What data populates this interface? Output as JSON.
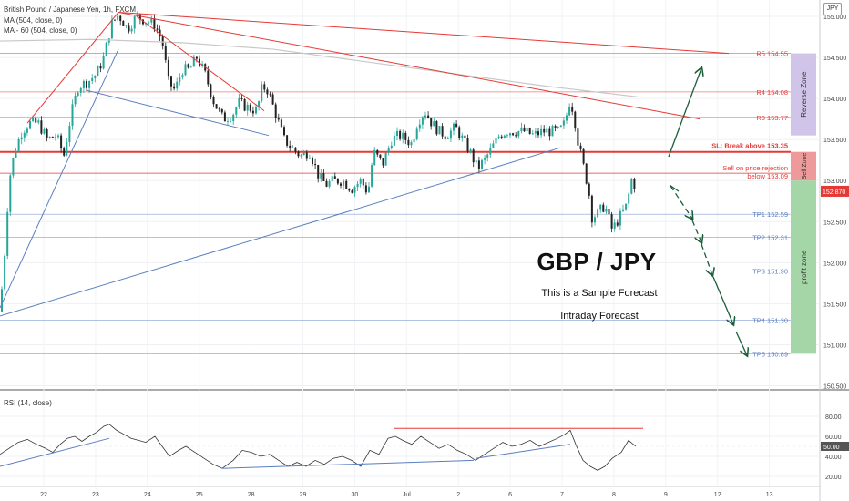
{
  "header": {
    "symbol": "British Pound / Japanese Yen, 1h, FXCM",
    "ma1": "MA (504, close, 0)",
    "ma2": "MA - 60 (504, close, 0)",
    "rsi": "RSI (14, close)"
  },
  "currency_button": "JPY",
  "annotations": {
    "title": "GBP / JPY",
    "line1": "This is a Sample Forecast",
    "line2": "Intraday Forecast"
  },
  "zones": {
    "reverse": "Reverse Zone",
    "sell": "Sell Zone",
    "profit": "profit zone"
  },
  "colors": {
    "bull": "#26a69a",
    "bear": "#222222",
    "level_red": "#e53935",
    "level_blue": "#5b7fc0",
    "forecast_arrow": "#1b5e3a",
    "reverse_zone": "#d1c4e9",
    "sell_zone": "#ef9a9a",
    "profit_zone": "#a5d6a7"
  },
  "chart_data": [
    {
      "type": "candlestick",
      "x_tick_labels": [
        "22",
        "23",
        "24",
        "25",
        "28",
        "29",
        "30",
        "Jul",
        "2",
        "6",
        "7",
        "8",
        "9",
        "12",
        "13"
      ],
      "y_tick_labels": [
        "155.000",
        "154.500",
        "154.000",
        "153.500",
        "153.000",
        "152.500",
        "152.000",
        "151.500",
        "151.000",
        "150.500"
      ],
      "ylim": [
        150.45,
        155.2
      ],
      "last_price": "152.870",
      "levels": [
        {
          "label": "R5 154.55",
          "value": 154.55,
          "kind": "resistance"
        },
        {
          "label": "R4 154.08",
          "value": 154.08,
          "kind": "resistance"
        },
        {
          "label": "R3 153.77",
          "value": 153.77,
          "kind": "resistance"
        },
        {
          "label": "SL: Break above 153.35",
          "value": 153.35,
          "kind": "stop"
        },
        {
          "label": "Sell on price rejection",
          "label2": "below 153.09",
          "value": 153.09,
          "kind": "entry"
        },
        {
          "label": "TP1 152.59",
          "value": 152.59,
          "kind": "target"
        },
        {
          "label": "TP2 152.31",
          "value": 152.31,
          "kind": "target"
        },
        {
          "label": "TP3 151.90",
          "value": 151.9,
          "kind": "target"
        },
        {
          "label": "TP4 151.30",
          "value": 151.3,
          "kind": "target"
        },
        {
          "label": "TP5 150.89",
          "value": 150.89,
          "kind": "target"
        }
      ],
      "path": [
        [
          0,
          151.4
        ],
        [
          5,
          152.1
        ],
        [
          10,
          153.0
        ],
        [
          16,
          153.35
        ],
        [
          24,
          153.6
        ],
        [
          32,
          153.7
        ],
        [
          42,
          153.7
        ],
        [
          52,
          153.5
        ],
        [
          62,
          153.55
        ],
        [
          70,
          153.3
        ],
        [
          78,
          153.8
        ],
        [
          86,
          154.15
        ],
        [
          96,
          154.2
        ],
        [
          106,
          154.3
        ],
        [
          114,
          154.5
        ],
        [
          122,
          154.9
        ],
        [
          130,
          155.02
        ],
        [
          140,
          154.85
        ],
        [
          150,
          155.0
        ],
        [
          160,
          154.95
        ],
        [
          170,
          154.9
        ],
        [
          178,
          154.7
        ],
        [
          185,
          154.2
        ],
        [
          192,
          154.1
        ],
        [
          200,
          154.35
        ],
        [
          208,
          154.35
        ],
        [
          216,
          154.5
        ],
        [
          225,
          154.3
        ],
        [
          235,
          153.95
        ],
        [
          245,
          153.75
        ],
        [
          255,
          153.8
        ],
        [
          262,
          153.95
        ],
        [
          270,
          153.9
        ],
        [
          282,
          153.85
        ],
        [
          288,
          154.15
        ],
        [
          294,
          154.1
        ],
        [
          300,
          153.9
        ],
        [
          306,
          153.7
        ],
        [
          312,
          153.5
        ],
        [
          320,
          153.4
        ],
        [
          330,
          153.3
        ],
        [
          340,
          153.35
        ],
        [
          350,
          153.05
        ],
        [
          358,
          152.95
        ],
        [
          366,
          153.0
        ],
        [
          376,
          153.0
        ],
        [
          386,
          152.9
        ],
        [
          396,
          153.0
        ],
        [
          404,
          152.85
        ],
        [
          410,
          153.35
        ],
        [
          420,
          153.2
        ],
        [
          430,
          153.5
        ],
        [
          438,
          153.55
        ],
        [
          446,
          153.5
        ],
        [
          452,
          153.45
        ],
        [
          458,
          153.7
        ],
        [
          466,
          153.85
        ],
        [
          474,
          153.7
        ],
        [
          482,
          153.6
        ],
        [
          490,
          153.55
        ],
        [
          500,
          153.65
        ],
        [
          508,
          153.5
        ],
        [
          516,
          153.35
        ],
        [
          524,
          153.15
        ],
        [
          532,
          153.25
        ],
        [
          540,
          153.4
        ],
        [
          548,
          153.55
        ],
        [
          556,
          153.6
        ],
        [
          566,
          153.6
        ],
        [
          576,
          153.6
        ],
        [
          586,
          153.55
        ],
        [
          596,
          153.6
        ],
        [
          606,
          153.6
        ],
        [
          614,
          153.6
        ],
        [
          620,
          153.7
        ],
        [
          626,
          154.0
        ],
        [
          630,
          153.8
        ],
        [
          634,
          153.5
        ],
        [
          640,
          153.2
        ],
        [
          646,
          152.9
        ],
        [
          650,
          152.55
        ],
        [
          656,
          152.6
        ],
        [
          664,
          152.7
        ],
        [
          672,
          152.4
        ],
        [
          680,
          152.55
        ],
        [
          688,
          152.7
        ],
        [
          694,
          153.05
        ],
        [
          698,
          152.87
        ]
      ],
      "trendlines": [
        {
          "from": [
            0,
            151.35
          ],
          "to": [
            615,
            153.4
          ],
          "color": "blue"
        },
        {
          "from": [
            0,
            151.45
          ],
          "to": [
            130,
            154.6
          ],
          "color": "blue"
        },
        {
          "from": [
            95,
            154.1
          ],
          "to": [
            295,
            153.55
          ],
          "color": "blue"
        },
        {
          "from": [
            30,
            153.7
          ],
          "to": [
            130,
            155.05
          ],
          "color": "red"
        },
        {
          "from": [
            130,
            155.05
          ],
          "to": [
            800,
            154.55
          ],
          "color": "red"
        },
        {
          "from": [
            130,
            155.05
          ],
          "to": [
            768,
            153.75
          ],
          "color": "red"
        },
        {
          "from": [
            150,
            155.0
          ],
          "to": [
            290,
            153.85
          ],
          "color": "red"
        }
      ],
      "ma_line": [
        [
          0,
          154.7
        ],
        [
          100,
          154.72
        ],
        [
          200,
          154.68
        ],
        [
          300,
          154.6
        ],
        [
          400,
          154.45
        ],
        [
          500,
          154.3
        ],
        [
          600,
          154.15
        ],
        [
          700,
          154.02
        ]
      ]
    },
    {
      "type": "line",
      "title": "RSI (14, close)",
      "y_tick_labels": [
        "80.00",
        "60.00",
        "50.00",
        "40.00",
        "20.00"
      ],
      "ylim": [
        10,
        90
      ],
      "last_value": "50.00",
      "series": [
        [
          0,
          42
        ],
        [
          10,
          48
        ],
        [
          20,
          54
        ],
        [
          30,
          57
        ],
        [
          40,
          52
        ],
        [
          50,
          48
        ],
        [
          58,
          44
        ],
        [
          66,
          52
        ],
        [
          74,
          58
        ],
        [
          82,
          60
        ],
        [
          90,
          55
        ],
        [
          98,
          60
        ],
        [
          106,
          64
        ],
        [
          114,
          70
        ],
        [
          120,
          72
        ],
        [
          128,
          66
        ],
        [
          136,
          62
        ],
        [
          144,
          58
        ],
        [
          152,
          56
        ],
        [
          160,
          54
        ],
        [
          170,
          60
        ],
        [
          178,
          50
        ],
        [
          186,
          40
        ],
        [
          196,
          46
        ],
        [
          204,
          50
        ],
        [
          214,
          44
        ],
        [
          224,
          38
        ],
        [
          234,
          32
        ],
        [
          244,
          28
        ],
        [
          256,
          36
        ],
        [
          266,
          46
        ],
        [
          276,
          44
        ],
        [
          286,
          40
        ],
        [
          296,
          42
        ],
        [
          306,
          36
        ],
        [
          316,
          30
        ],
        [
          326,
          34
        ],
        [
          336,
          30
        ],
        [
          346,
          36
        ],
        [
          356,
          32
        ],
        [
          366,
          38
        ],
        [
          376,
          40
        ],
        [
          386,
          36
        ],
        [
          396,
          30
        ],
        [
          406,
          46
        ],
        [
          416,
          42
        ],
        [
          426,
          58
        ],
        [
          434,
          60
        ],
        [
          442,
          56
        ],
        [
          452,
          52
        ],
        [
          462,
          60
        ],
        [
          472,
          54
        ],
        [
          482,
          48
        ],
        [
          492,
          52
        ],
        [
          502,
          46
        ],
        [
          512,
          42
        ],
        [
          522,
          36
        ],
        [
          532,
          42
        ],
        [
          542,
          48
        ],
        [
          552,
          54
        ],
        [
          562,
          50
        ],
        [
          572,
          52
        ],
        [
          582,
          56
        ],
        [
          592,
          50
        ],
        [
          602,
          54
        ],
        [
          612,
          58
        ],
        [
          620,
          62
        ],
        [
          626,
          66
        ],
        [
          632,
          52
        ],
        [
          640,
          36
        ],
        [
          648,
          30
        ],
        [
          656,
          26
        ],
        [
          664,
          30
        ],
        [
          672,
          38
        ],
        [
          682,
          44
        ],
        [
          690,
          56
        ],
        [
          698,
          50
        ]
      ],
      "trendlines": [
        {
          "from": [
            0,
            30
          ],
          "to": [
            120,
            58
          ],
          "color": "blue"
        },
        {
          "from": [
            244,
            28
          ],
          "to": [
            520,
            36
          ],
          "color": "blue"
        },
        {
          "from": [
            522,
            38
          ],
          "to": [
            626,
            52
          ],
          "color": "blue"
        },
        {
          "from": [
            432,
            68
          ],
          "to": [
            706,
            68
          ],
          "color": "red"
        }
      ]
    }
  ]
}
